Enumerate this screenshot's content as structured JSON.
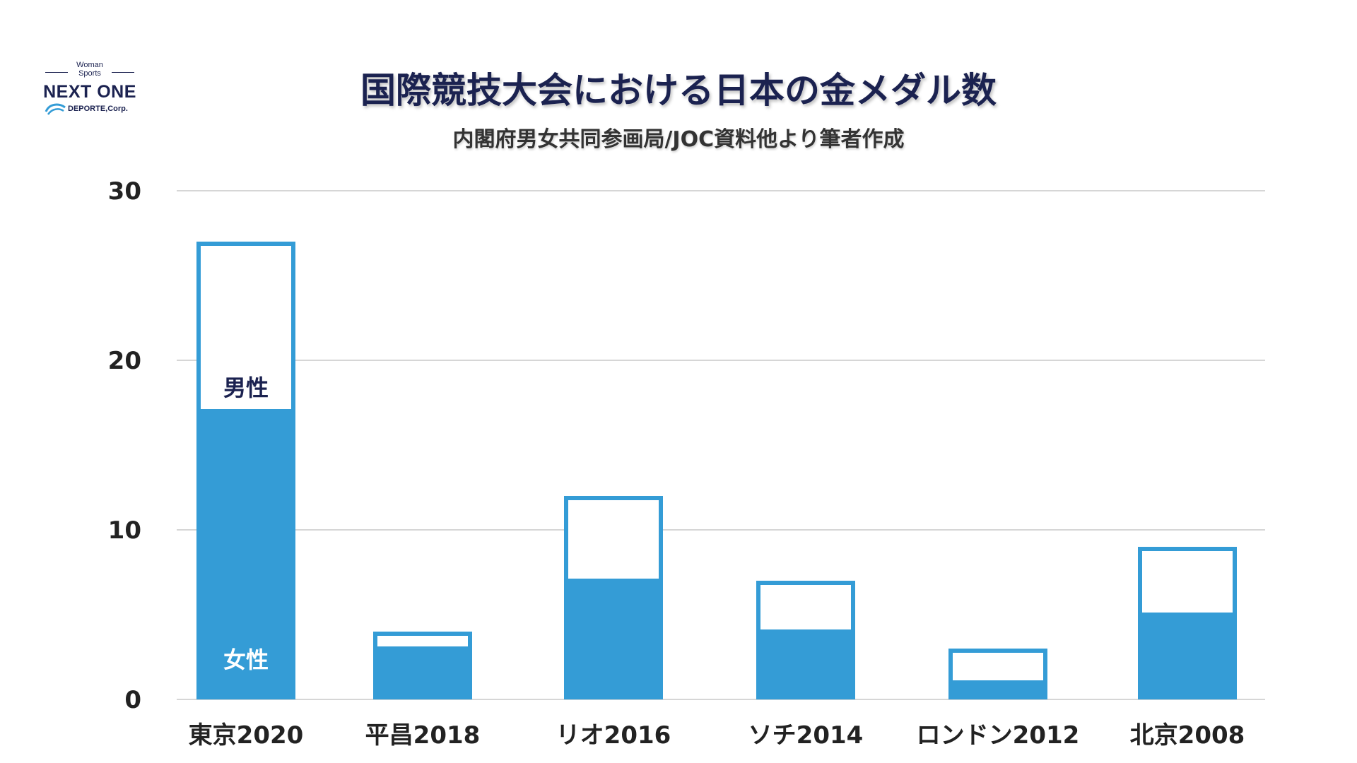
{
  "logo": {
    "top_text_1": "Woman",
    "top_text_2": "Sports",
    "main_text": "NEXT ONE",
    "sub_text": "DEPORTE,Corp."
  },
  "header": {
    "title": "国際競技大会における日本の金メダル数",
    "subtitle": "内閣府男女共同参画局/JOC資料他より筆者作成"
  },
  "colors": {
    "bar_fill": "#349cd6",
    "bar_border": "#349cd6",
    "title": "#1b2250",
    "label_male": "#1b2250",
    "label_female": "#ffffff",
    "grid": "#c8c8c8"
  },
  "chart_data": {
    "type": "bar",
    "stacked": true,
    "title": "国際競技大会における日本の金メダル数",
    "subtitle": "内閣府男女共同参画局/JOC資料他より筆者作成",
    "categories": [
      "東京2020",
      "平昌2018",
      "リオ2016",
      "ソチ2014",
      "ロンドン2012",
      "北京2008"
    ],
    "series": [
      {
        "name": "女性",
        "values": [
          17,
          3,
          7,
          4,
          1,
          5
        ]
      },
      {
        "name": "男性",
        "values": [
          10,
          1,
          5,
          3,
          2,
          4
        ]
      }
    ],
    "ylim": [
      0,
      30
    ],
    "yticks": [
      "0",
      "10",
      "20",
      "30"
    ],
    "grid": true,
    "xlabel": "",
    "ylabel": "",
    "segment_labels": {
      "male": "男性",
      "female": "女性"
    }
  }
}
